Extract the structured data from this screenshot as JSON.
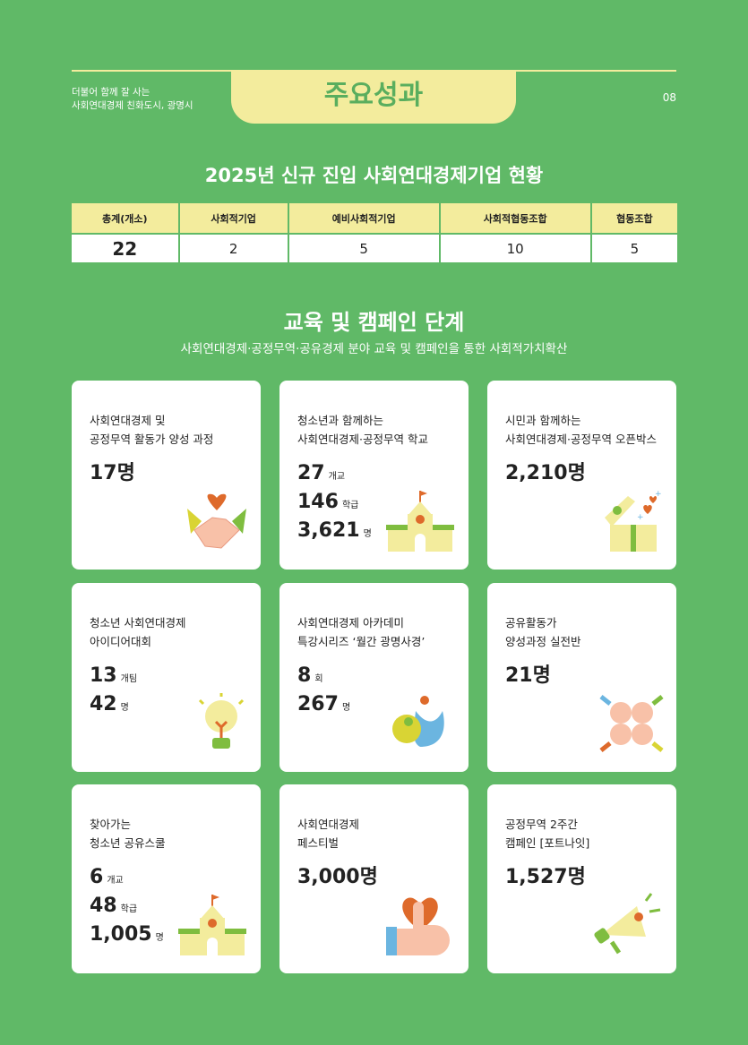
{
  "header": {
    "brand_line1": "더불어 함께 잘 사는",
    "brand_line2": "사회연대경제 친화도시, 광명시",
    "title": "주요성과",
    "page": "08"
  },
  "enterprise": {
    "title": "2025년 신규 진입 사회연대경제기업 현황",
    "columns": [
      "총계(개소)",
      "사회적기업",
      "예비사회적기업",
      "사회적협동조합",
      "협동조합"
    ],
    "values": [
      "22",
      "2",
      "5",
      "10",
      "5"
    ]
  },
  "campaign": {
    "title": "교육 및 캠페인 단계",
    "subtitle": "사회연대경제·공정무역·공유경제 분야 교육 및 캠페인을 통한 사회적가치확산",
    "cards": [
      {
        "line1": "사회연대경제 및",
        "line2": "공정무역 활동가 양성 과정",
        "stats": [
          {
            "n": "17",
            "u": "명"
          }
        ],
        "icon": "handshake-heart-icon"
      },
      {
        "line1": "청소년과 함께하는",
        "line2": "사회연대경제·공정무역 학교",
        "stats": [
          {
            "n": "27",
            "u": "개교"
          },
          {
            "n": "146",
            "u": "학급"
          },
          {
            "n": "3,621",
            "u": "명"
          }
        ],
        "icon": "school-icon"
      },
      {
        "line1": "시민과 함께하는",
        "line2": "사회연대경제·공정무역 오픈박스",
        "stats": [
          {
            "n": "2,210",
            "u": "명"
          }
        ],
        "icon": "gift-box-icon"
      },
      {
        "line1": "청소년 사회연대경제",
        "line2": "아이디어대회",
        "stats": [
          {
            "n": "13",
            "u": "개팀"
          },
          {
            "n": "42",
            "u": "명"
          }
        ],
        "icon": "lightbulb-icon"
      },
      {
        "line1": "사회연대경제 아카데미",
        "line2": "특강시리즈 ‘월간 광명사경’",
        "stats": [
          {
            "n": "8",
            "u": "회"
          },
          {
            "n": "267",
            "u": "명"
          }
        ],
        "icon": "people-icon"
      },
      {
        "line1": "공유활동가",
        "line2": "양성과정 실전반",
        "stats": [
          {
            "n": "21",
            "u": "명"
          }
        ],
        "icon": "hands-together-icon"
      },
      {
        "line1": "찾아가는",
        "line2": "청소년 공유스쿨",
        "stats": [
          {
            "n": "6",
            "u": "개교"
          },
          {
            "n": "48",
            "u": "학급"
          },
          {
            "n": "1,005",
            "u": "명"
          }
        ],
        "icon": "school-icon"
      },
      {
        "line1": "사회연대경제",
        "line2": "페스티벌",
        "stats": [
          {
            "n": "3,000",
            "u": "명"
          }
        ],
        "icon": "thumbs-up-heart-icon"
      },
      {
        "line1": "공정무역 2주간",
        "line2": "캠페인 [포트나잇]",
        "stats": [
          {
            "n": "1,527",
            "u": "명"
          }
        ],
        "icon": "megaphone-icon"
      }
    ]
  },
  "colors": {
    "background": "#60b967",
    "accent": "#f3ec9d"
  }
}
